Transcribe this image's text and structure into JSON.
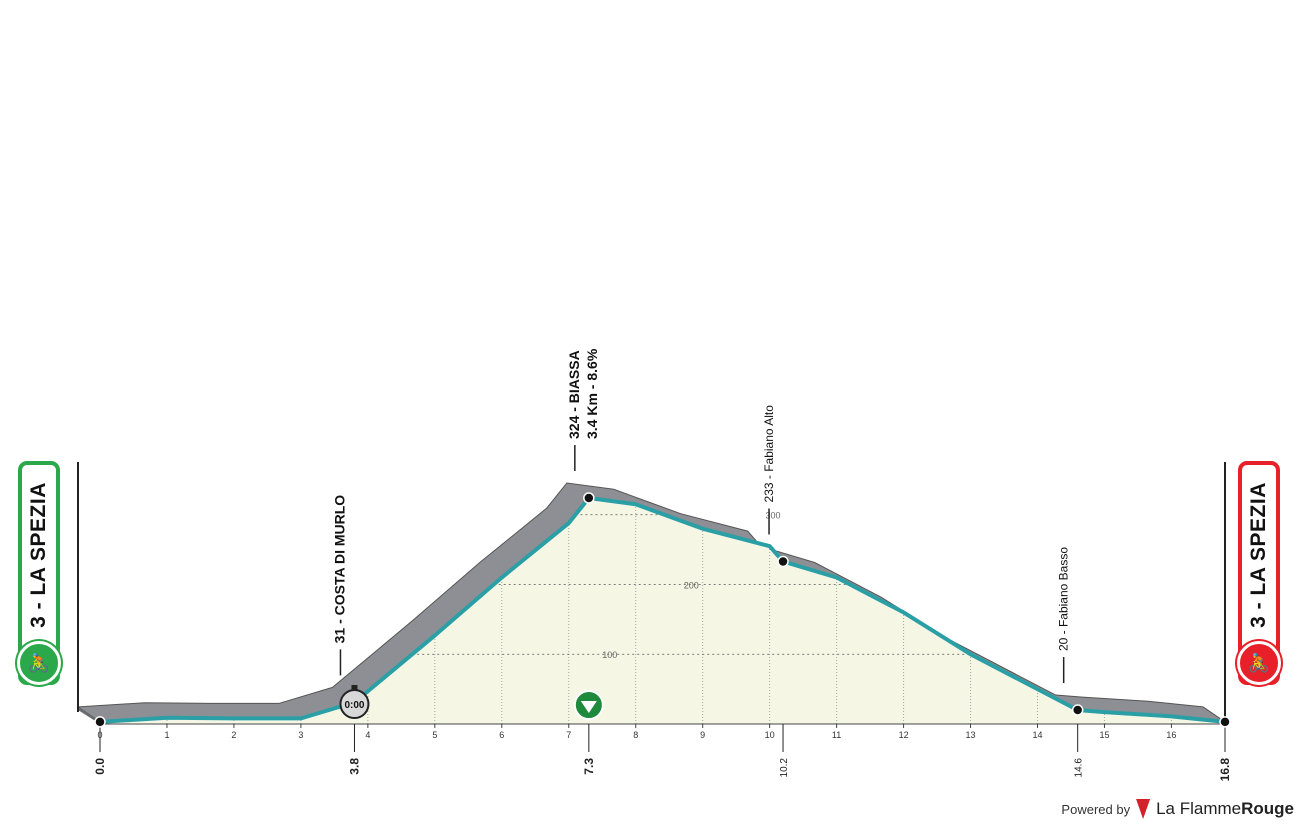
{
  "start_label": "3 - LA SPEZIA",
  "finish_label": "3 - LA SPEZIA",
  "footer": {
    "powered_by": "Powered by",
    "brand_light": "La Flamme",
    "brand_bold": "Rouge"
  },
  "colors": {
    "route": "#2a9fa6",
    "fill": "#f5f6e4",
    "slope": "#8e8f94",
    "start": "#2aa84a",
    "finish": "#e8202a"
  },
  "chart_data": {
    "type": "area",
    "x_range": [
      0,
      16.8
    ],
    "y_range": [
      0,
      324
    ],
    "profile": [
      {
        "x": 0.0,
        "y": 3
      },
      {
        "x": 1.0,
        "y": 9
      },
      {
        "x": 2.0,
        "y": 8
      },
      {
        "x": 3.0,
        "y": 8
      },
      {
        "x": 3.8,
        "y": 31
      },
      {
        "x": 5.0,
        "y": 127
      },
      {
        "x": 6.0,
        "y": 210
      },
      {
        "x": 7.0,
        "y": 288
      },
      {
        "x": 7.3,
        "y": 324
      },
      {
        "x": 8.0,
        "y": 315
      },
      {
        "x": 9.0,
        "y": 280
      },
      {
        "x": 10.0,
        "y": 255
      },
      {
        "x": 10.2,
        "y": 233
      },
      {
        "x": 11.0,
        "y": 210
      },
      {
        "x": 12.0,
        "y": 160
      },
      {
        "x": 13.0,
        "y": 100
      },
      {
        "x": 14.0,
        "y": 50
      },
      {
        "x": 14.6,
        "y": 20
      },
      {
        "x": 15.0,
        "y": 17
      },
      {
        "x": 16.0,
        "y": 11
      },
      {
        "x": 16.8,
        "y": 3
      }
    ],
    "x_ticks": [
      "0",
      "1",
      "2",
      "3",
      "4",
      "5",
      "6",
      "7",
      "8",
      "9",
      "10",
      "11",
      "12",
      "13",
      "14",
      "15",
      "16"
    ],
    "y_gridlines": [
      {
        "value": 100,
        "label": "100"
      },
      {
        "value": 200,
        "label": "200"
      },
      {
        "value": 300,
        "label": "300"
      }
    ],
    "km_markers": [
      {
        "x": 0.0,
        "label": "0.0",
        "bold": true
      },
      {
        "x": 3.8,
        "label": "3.8",
        "bold": true
      },
      {
        "x": 7.3,
        "label": "7.3",
        "bold": true
      },
      {
        "x": 10.2,
        "label": "10.2",
        "bold": false
      },
      {
        "x": 14.6,
        "label": "14.6",
        "bold": false
      },
      {
        "x": 16.8,
        "label": "16.8",
        "bold": true
      }
    ],
    "annotations": [
      {
        "x": 3.8,
        "y": 31,
        "lines": [
          "31 - COSTA DI MURLO"
        ],
        "bold": true
      },
      {
        "x": 7.3,
        "y": 324,
        "lines": [
          "324 - BIASSA",
          "3.4 Km - 8.6%"
        ],
        "bold": true
      },
      {
        "x": 10.2,
        "y": 233,
        "lines": [
          "233 - Fabiano Alto"
        ],
        "bold": false
      },
      {
        "x": 14.6,
        "y": 20,
        "lines": [
          "20 - Fabiano Basso"
        ],
        "bold": false
      }
    ],
    "timer_label": "0:00"
  }
}
